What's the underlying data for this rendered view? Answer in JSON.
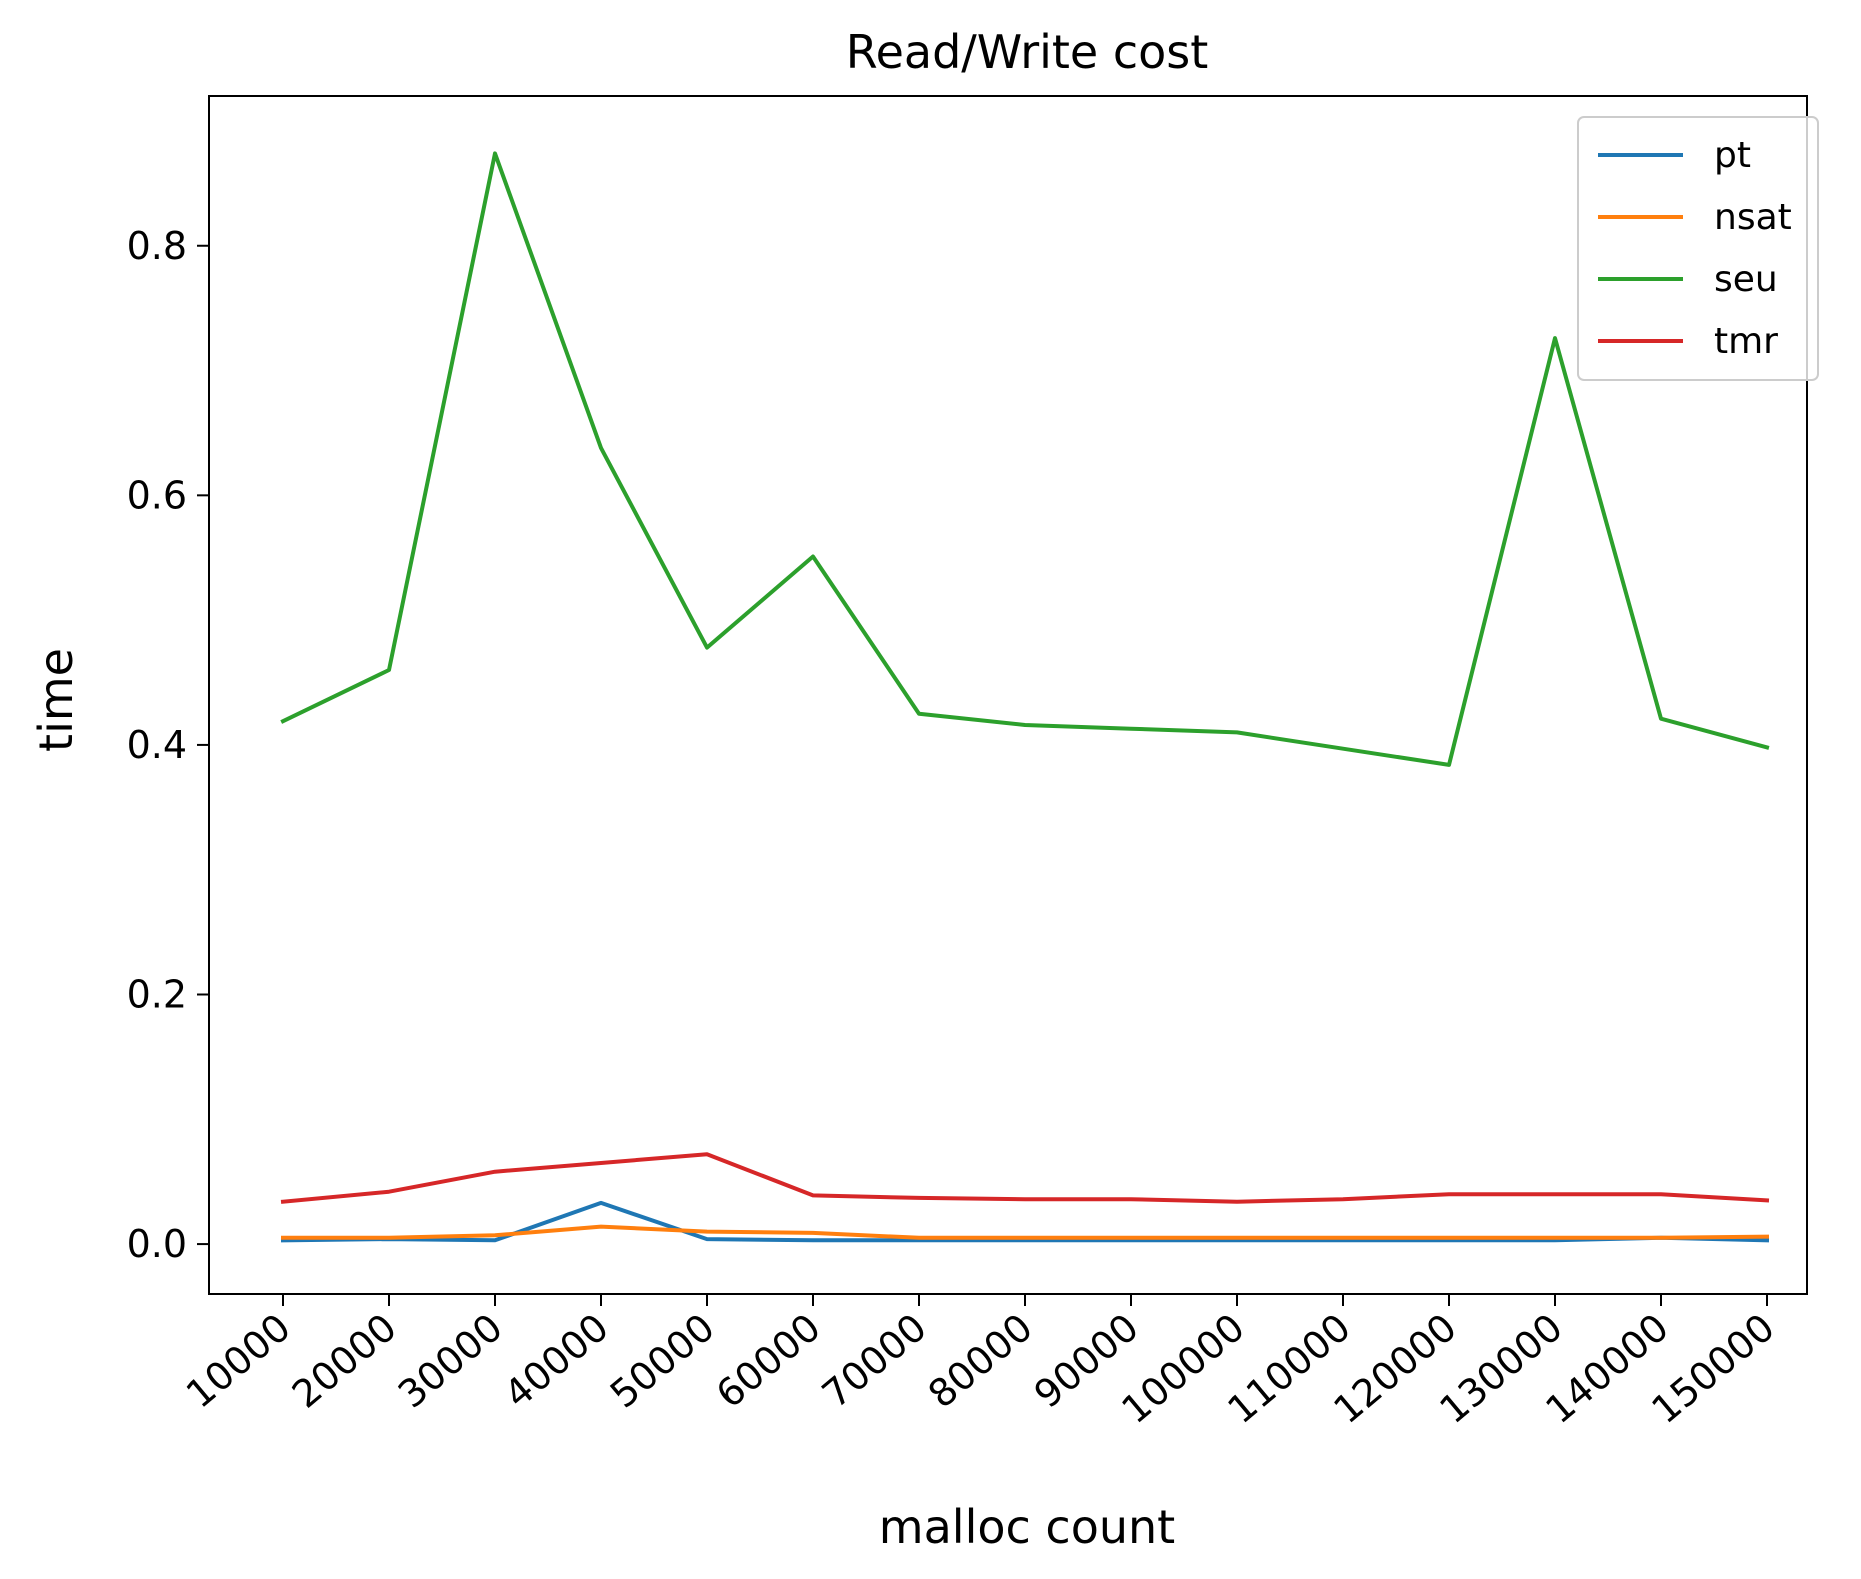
{
  "chart_data": {
    "type": "line",
    "title": "Read/Write cost",
    "xlabel": "malloc count",
    "ylabel": "time",
    "x": [
      10000,
      20000,
      30000,
      40000,
      50000,
      60000,
      70000,
      80000,
      90000,
      100000,
      110000,
      120000,
      130000,
      140000,
      150000
    ],
    "x_tick_labels": [
      "10000",
      "20000",
      "30000",
      "40000",
      "50000",
      "60000",
      "70000",
      "80000",
      "90000",
      "100000",
      "110000",
      "120000",
      "130000",
      "140000",
      "150000"
    ],
    "y_ticks": [
      0.0,
      0.2,
      0.4,
      0.6,
      0.8
    ],
    "y_tick_labels": [
      "0.0",
      "0.2",
      "0.4",
      "0.6",
      "0.8"
    ],
    "ylim": [
      -0.04,
      0.92
    ],
    "grid": false,
    "legend_position": "top-right",
    "series": [
      {
        "name": "pt",
        "color": "#1f77b4",
        "values": [
          0.003,
          0.004,
          0.003,
          0.033,
          0.004,
          0.003,
          0.003,
          0.003,
          0.003,
          0.003,
          0.003,
          0.003,
          0.003,
          0.005,
          0.003
        ]
      },
      {
        "name": "nsat",
        "color": "#ff7f0e",
        "values": [
          0.005,
          0.005,
          0.007,
          0.014,
          0.01,
          0.009,
          0.005,
          0.005,
          0.005,
          0.005,
          0.005,
          0.005,
          0.005,
          0.005,
          0.006
        ]
      },
      {
        "name": "seu",
        "color": "#2ca02c",
        "values": [
          0.419,
          0.46,
          0.874,
          0.638,
          0.478,
          0.551,
          0.425,
          0.416,
          0.413,
          0.41,
          0.397,
          0.384,
          0.726,
          0.421,
          0.398
        ]
      },
      {
        "name": "tmr",
        "color": "#d62728",
        "values": [
          0.034,
          0.042,
          0.058,
          0.065,
          0.072,
          0.039,
          0.037,
          0.036,
          0.036,
          0.034,
          0.036,
          0.04,
          0.04,
          0.04,
          0.035
        ]
      }
    ]
  }
}
